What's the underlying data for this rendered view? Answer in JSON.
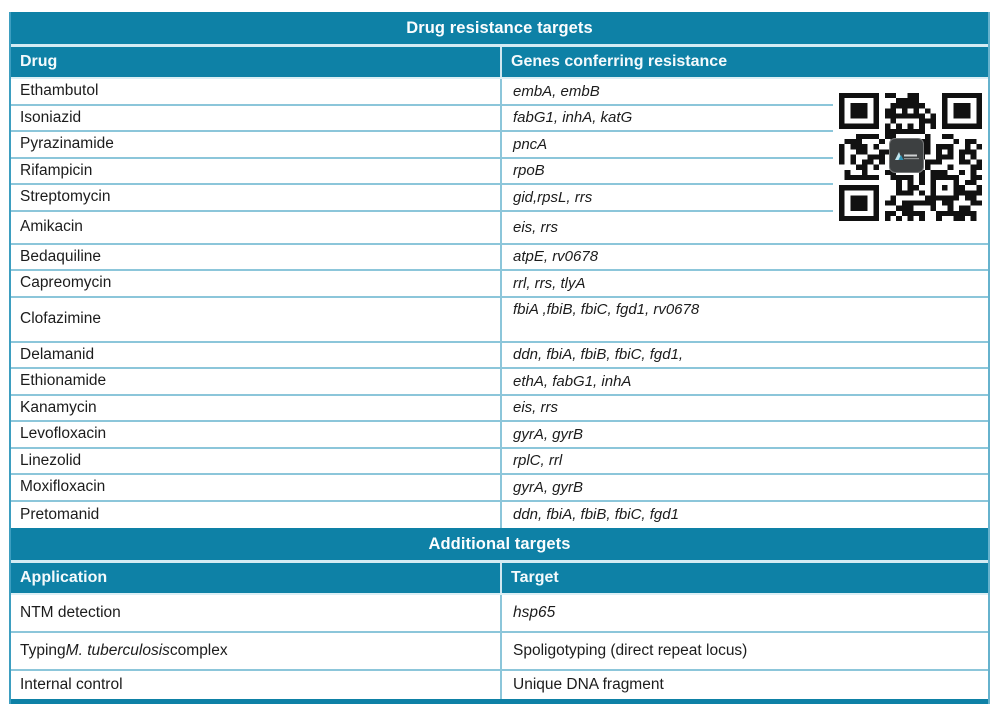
{
  "colors": {
    "teal_header": "#0e81a6",
    "divider_light_blue": "#8cc6da",
    "header_gap_line": "#d4ebf3",
    "body_text": "#1c1c1c",
    "header_text": "#ffffff",
    "qr_module": "#111111"
  },
  "table1": {
    "title": "Drug resistance targets",
    "col1": "Drug",
    "col2": "Genes conferring resistance",
    "rows": [
      {
        "c1": "Ethambutol",
        "c2": "embA, embB",
        "size": "n"
      },
      {
        "c1": "Isoniazid",
        "c2": "fabG1, inhA, katG",
        "size": "n"
      },
      {
        "c1": "Pyrazinamide",
        "c2": "pncA",
        "size": "n"
      },
      {
        "c1": "Rifampicin",
        "c2": "rpoB",
        "size": "n"
      },
      {
        "c1": "Streptomycin",
        "c2": "gid,rpsL, rrs",
        "size": "n"
      },
      {
        "c1": "Amikacin",
        "c2": "eis, rrs",
        "size": "t"
      },
      {
        "c1": "Bedaquiline",
        "c2": "atpE, rv0678",
        "size": "n"
      },
      {
        "c1": "Capreomycin",
        "c2": "rrl, rrs, tlyA",
        "size": "n"
      },
      {
        "c1": "Clofazimine",
        "c2": "fbiA ,fbiB, fbiC, fgd1, rv0678",
        "size": "x"
      },
      {
        "c1": "Delamanid",
        "c2": "ddn, fbiA, fbiB, fbiC, fgd1,",
        "size": "n"
      },
      {
        "c1": "Ethionamide",
        "c2": "ethA, fabG1, inhA",
        "size": "n"
      },
      {
        "c1": "Kanamycin",
        "c2": "eis, rrs",
        "size": "n"
      },
      {
        "c1": "Levofloxacin",
        "c2": "gyrA, gyrB",
        "size": "n"
      },
      {
        "c1": "Linezolid",
        "c2": "rplC, rrl",
        "size": "n"
      },
      {
        "c1": "Moxifloxacin",
        "c2": "gyrA, gyrB",
        "size": "n"
      },
      {
        "c1": "Pretomanid",
        "c2": "ddn, fbiA, fbiB, fbiC, fgd1",
        "size": "n"
      }
    ]
  },
  "table2": {
    "title": "Additional targets",
    "col1": "Application",
    "col2": "Target",
    "rows": [
      {
        "c1": [
          {
            "t": "NTM detection"
          }
        ],
        "c2": [
          {
            "t": "hsp65",
            "i": true
          }
        ],
        "size": "b38"
      },
      {
        "c1": [
          {
            "t": "Typing "
          },
          {
            "t": "M. tuberculosis",
            "i": true
          },
          {
            "t": " complex"
          }
        ],
        "c2": [
          {
            "t": "Spoligotyping (direct repeat locus)"
          }
        ],
        "size": "b38"
      },
      {
        "c1": [
          {
            "t": "Internal control"
          }
        ],
        "c2": [
          {
            "t": "Unique DNA fragment"
          }
        ],
        "size": "b28"
      }
    ]
  },
  "qr_code": {
    "icon": "qr-code"
  }
}
